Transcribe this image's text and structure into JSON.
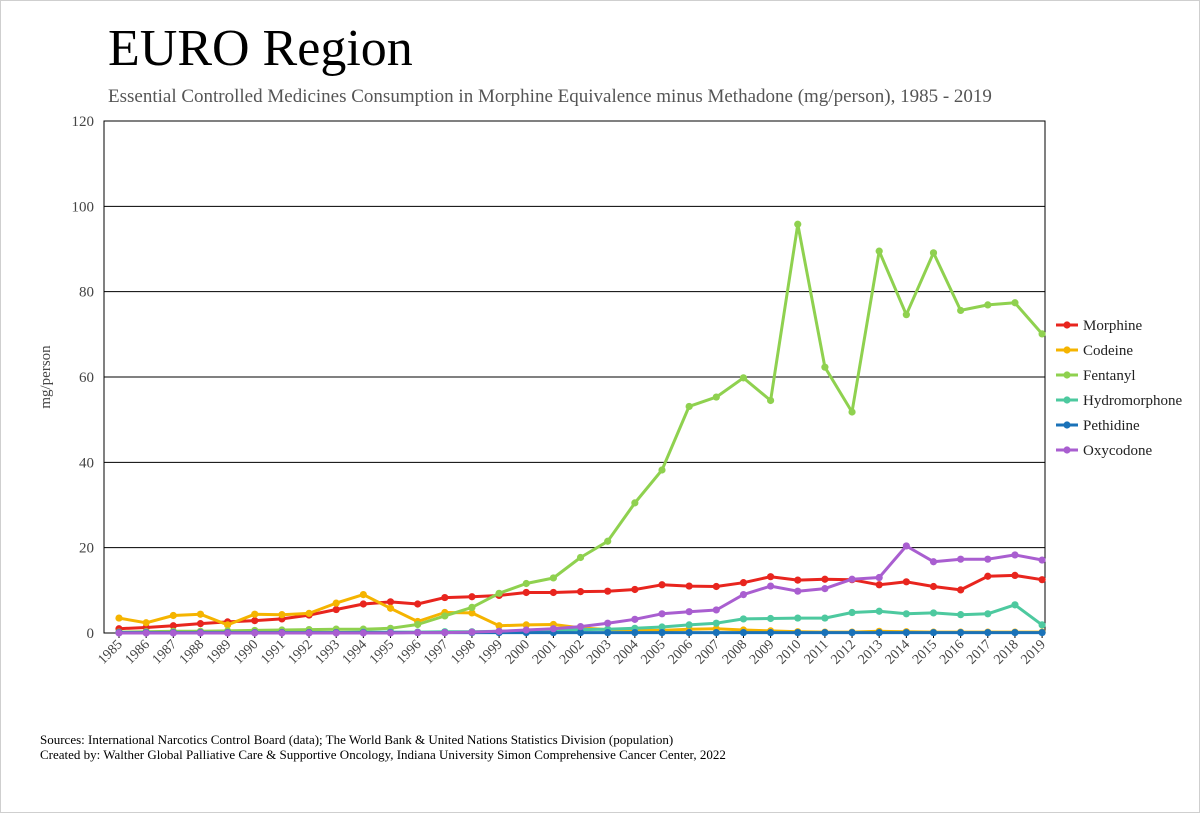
{
  "title": "EURO Region",
  "subtitle": "Essential Controlled Medicines Consumption in Morphine Equivalence minus Methadone (mg/person), 1985 - 2019",
  "sources": "Sources: International Narcotics Control Board (data); The World Bank & United Nations Statistics Division (population)",
  "credit": "Created by: Walther Global Palliative Care & Supportive Oncology, Indiana University Simon Comprehensive Cancer Center, 2022",
  "chart_data": {
    "type": "line",
    "title": "EURO Region",
    "subtitle": "Essential Controlled Medicines Consumption in Morphine Equivalence minus Methadone (mg/person), 1985 - 2019",
    "xlabel": "",
    "ylabel": "mg/person",
    "ylim": [
      0,
      120
    ],
    "yticks": [
      0,
      20,
      40,
      60,
      80,
      100,
      120
    ],
    "grid": "horizontal",
    "legend": "right",
    "categories": [
      "1985",
      "1986",
      "1987",
      "1988",
      "1989",
      "1990",
      "1991",
      "1992",
      "1993",
      "1994",
      "1995",
      "1996",
      "1997",
      "1998",
      "1999",
      "2000",
      "2001",
      "2002",
      "2003",
      "2004",
      "2005",
      "2006",
      "2007",
      "2008",
      "2009",
      "2010",
      "2011",
      "2012",
      "2013",
      "2014",
      "2015",
      "2016",
      "2017",
      "2018",
      "2019"
    ],
    "series": [
      {
        "name": "Morphine",
        "color": "#e8251e",
        "values": [
          1.0,
          1.3,
          1.7,
          2.2,
          2.6,
          2.9,
          3.3,
          4.2,
          5.5,
          6.8,
          7.3,
          6.8,
          8.3,
          8.5,
          8.8,
          9.5,
          9.5,
          9.7,
          9.8,
          10.2,
          11.3,
          11.0,
          10.9,
          11.8,
          13.2,
          12.4,
          12.6,
          12.5,
          11.3,
          12.0,
          10.9,
          10.1,
          13.3,
          13.5,
          12.5
        ]
      },
      {
        "name": "Codeine",
        "color": "#f5b400",
        "values": [
          3.5,
          2.4,
          4.1,
          4.4,
          1.9,
          4.4,
          4.3,
          4.6,
          7.0,
          9.0,
          5.8,
          2.7,
          4.8,
          4.7,
          1.7,
          1.9,
          2.0,
          1.2,
          0.8,
          0.7,
          0.6,
          0.9,
          1.0,
          0.7,
          0.5,
          0.3,
          0.2,
          0.2,
          0.4,
          0.3,
          0.2,
          0.2,
          0.2,
          0.2,
          0.2
        ]
      },
      {
        "name": "Fentanyl",
        "color": "#8fd14f",
        "values": [
          0.2,
          0.3,
          0.4,
          0.4,
          0.5,
          0.6,
          0.7,
          0.8,
          0.9,
          0.9,
          1.1,
          2.0,
          4.0,
          6.0,
          9.3,
          11.6,
          12.9,
          17.7,
          21.5,
          30.5,
          38.2,
          53.1,
          55.3,
          59.8,
          54.5,
          95.8,
          62.3,
          51.8,
          89.5,
          74.6,
          89.1,
          75.6,
          76.9,
          77.4,
          70.1
        ]
      },
      {
        "name": "Hydromorphone",
        "color": "#4dc99f",
        "values": [
          0.1,
          0.1,
          0.1,
          0.1,
          0.1,
          0.1,
          0.1,
          0.1,
          0.1,
          0.2,
          0.2,
          0.2,
          0.3,
          0.3,
          0.4,
          0.5,
          0.6,
          0.8,
          0.9,
          1.1,
          1.4,
          1.9,
          2.3,
          3.3,
          3.4,
          3.5,
          3.5,
          4.8,
          5.1,
          4.5,
          4.7,
          4.3,
          4.5,
          6.6,
          1.9
        ]
      },
      {
        "name": "Pethidine",
        "color": "#1a72b8",
        "values": [
          0.1,
          0.1,
          0.1,
          0.1,
          0.1,
          0.1,
          0.1,
          0.1,
          0.1,
          0.1,
          0.1,
          0.1,
          0.1,
          0.1,
          0.1,
          0.1,
          0.1,
          0.1,
          0.1,
          0.1,
          0.1,
          0.1,
          0.1,
          0.1,
          0.1,
          0.1,
          0.1,
          0.1,
          0.1,
          0.1,
          0.1,
          0.1,
          0.1,
          0.1,
          0.1
        ]
      },
      {
        "name": "Oxycodone",
        "color": "#a95ed0",
        "values": [
          0.0,
          0.0,
          0.0,
          0.0,
          0.0,
          0.0,
          0.0,
          0.0,
          0.0,
          0.0,
          0.0,
          0.1,
          0.1,
          0.2,
          0.4,
          0.7,
          1.0,
          1.5,
          2.3,
          3.2,
          4.5,
          5.0,
          5.4,
          9.0,
          11.0,
          9.8,
          10.4,
          12.6,
          13.0,
          20.4,
          16.7,
          17.3,
          17.3,
          18.3,
          17.1
        ]
      }
    ]
  }
}
